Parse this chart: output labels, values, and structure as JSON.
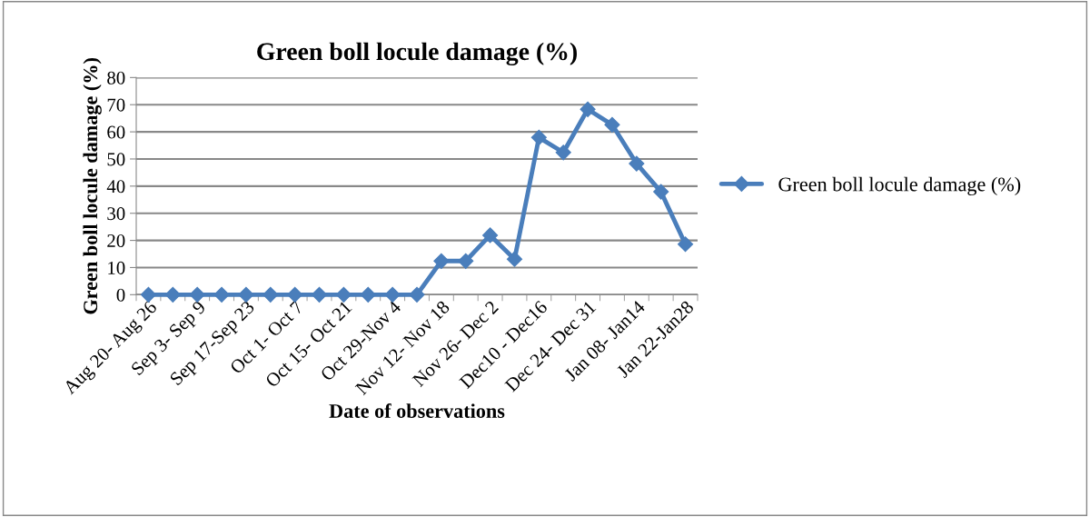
{
  "chart_data": {
    "type": "line",
    "title": "Green boll locule damage (%)",
    "xlabel": "Date of observations",
    "ylabel": "Green boll locule damage (%)",
    "categories": [
      "Aug 20- Aug 26",
      null,
      "Sep 3- Sep 9",
      null,
      "Sep 17-Sep 23",
      null,
      "Oct 1- Oct 7",
      null,
      "Oct 15- Oct 21",
      null,
      "Oct 29-Nov 4",
      null,
      "Nov 12- Nov 18",
      null,
      "Nov 26- Dec 2",
      null,
      "Dec10 - Dec16",
      null,
      "Dec 24- Dec 31",
      null,
      "Jan 08- Jan14",
      null,
      "Jan 22-Jan28"
    ],
    "series": [
      {
        "name": "Green boll locule damage (%)",
        "color": "#4a7ebb",
        "values": [
          0,
          0,
          0,
          0,
          0,
          0,
          0,
          0,
          0,
          0,
          0,
          0,
          12.4,
          12.4,
          21.9,
          13.1,
          57.9,
          52.4,
          68.3,
          62.6,
          48.3,
          37.9,
          18.6
        ]
      }
    ],
    "ylim": [
      0,
      80
    ],
    "yticks": [
      0,
      10,
      20,
      30,
      40,
      50,
      60,
      70,
      80
    ],
    "grid": "y",
    "legend": "right",
    "marker": "diamond",
    "line_style": "solid"
  }
}
